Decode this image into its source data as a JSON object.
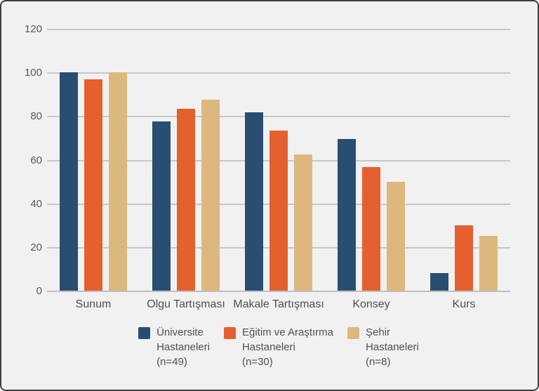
{
  "chart_data": {
    "type": "bar",
    "categories": [
      "Sunum",
      "Olgu Tartışması",
      "Makale Tartışması",
      "Konsey",
      "Kurs"
    ],
    "series": [
      {
        "name": "Üniversite Hastaneleri (n=49)",
        "label_lines": [
          "Üniversite",
          "Hastaneleri",
          "(n=49)"
        ],
        "color": "#2A4E72",
        "values": [
          100,
          77.6,
          81.6,
          69.4,
          8.2
        ]
      },
      {
        "name": "Eğitim ve Araştırma Hastaneleri (n=30)",
        "label_lines": [
          "Eğitim ve Araştırma",
          "Hastaneleri",
          "(n=30)"
        ],
        "color": "#E4602F",
        "values": [
          96.7,
          83.3,
          73.3,
          56.7,
          30
        ]
      },
      {
        "name": "Şehir Hastaneleri (n=8)",
        "label_lines": [
          "Şehir",
          "Hastaneleri",
          "(n=8)"
        ],
        "color": "#DDB87E",
        "values": [
          100,
          87.5,
          62.5,
          50,
          25
        ]
      }
    ],
    "title": "",
    "xlabel": "",
    "ylabel": "",
    "ylim": [
      0,
      120
    ],
    "yticks": [
      0,
      20,
      40,
      60,
      80,
      100,
      120
    ],
    "grid": true,
    "legend_position": "bottom"
  },
  "colors": {
    "background": "#F1F1F2",
    "gridline": "#C7C7C9",
    "axis_line": "#BFBFC1",
    "text": "#57585A",
    "frame_border": "#3F3F3F"
  }
}
